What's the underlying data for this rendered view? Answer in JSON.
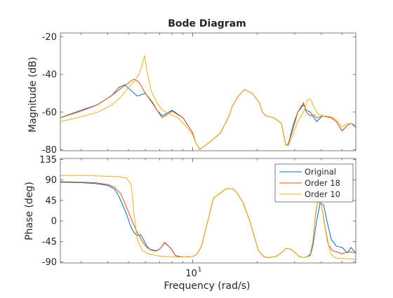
{
  "chart_data": {
    "type": "line",
    "title": "Bode Diagram",
    "xlabel": "Frequency  (rad/s)",
    "xscale": "log",
    "xlim": [
      2.4,
      58
    ],
    "x_tick_labels": [
      {
        "value": 10,
        "base": "10",
        "exponent": "1"
      }
    ],
    "grid": false,
    "legend": {
      "placement": "top-right",
      "panel": "phase",
      "entries": [
        "Original",
        "Order 18",
        "Order 10"
      ]
    },
    "panels": [
      {
        "name": "magnitude",
        "ylabel": "Magnitude (dB)",
        "ylim": [
          -80.5,
          -18
        ],
        "yticks": [
          -80,
          -60,
          -40,
          -20
        ],
        "series": [
          {
            "name": "Original",
            "color": "#0072BD",
            "x": [
              2.4,
              3.0,
              3.6,
              4.2,
              4.5,
              4.8,
              5.2,
              5.5,
              6.0,
              6.5,
              6.8,
              7.2,
              8.0,
              9.0,
              10.0,
              10.3,
              10.8,
              12.0,
              13.5,
              14.8,
              15.3,
              15.7,
              16.2,
              17.5,
              19.0,
              20.5,
              21.2,
              22.0,
              24.0,
              26.0,
              27.3,
              28.0,
              29.5,
              31.0,
              32.0,
              33.0,
              34.0,
              35.5,
              37.0,
              38.0,
              40.5,
              44.5,
              47.0,
              50.0,
              53.0,
              55.0,
              58.0
            ],
            "y": [
              -63,
              -59,
              -56,
              -51,
              -47,
              -45.5,
              -49,
              -51.5,
              -50,
              -55,
              -59,
              -62,
              -59,
              -63,
              -71,
              -76,
              -79.8,
              -76,
              -71,
              -62,
              -57,
              -55,
              -52,
              -48,
              -50,
              -55,
              -60,
              -62,
              -63,
              -66,
              -77.5,
              -77,
              -67,
              -60,
              -58,
              -56,
              -59,
              -60,
              -63,
              -65,
              -62,
              -63,
              -65,
              -70,
              -67,
              -66,
              -68
            ]
          },
          {
            "name": "Order 18",
            "color": "#D95319",
            "x": [
              2.4,
              3.0,
              3.6,
              4.2,
              4.6,
              5.0,
              5.3,
              5.6,
              6.0,
              6.5,
              6.8,
              7.2,
              8.0,
              9.0,
              10.0,
              10.3,
              10.8,
              12.0,
              13.5,
              14.8,
              15.3,
              15.7,
              16.2,
              17.5,
              19.0,
              20.5,
              21.2,
              22.0,
              24.0,
              26.0,
              27.3,
              28.0,
              29.5,
              31.0,
              32.0,
              33.0,
              34.0,
              35.5,
              37.0,
              38.0,
              40.5,
              44.5,
              47.0,
              50.0,
              53.0,
              55.0,
              58.0
            ],
            "y": [
              -63,
              -59.5,
              -56,
              -51,
              -47.5,
              -44.5,
              -42.5,
              -44,
              -50,
              -55.5,
              -59,
              -63,
              -59.5,
              -63,
              -71,
              -76,
              -79.8,
              -76,
              -71,
              -62,
              -57,
              -55,
              -52,
              -48,
              -50,
              -55,
              -60,
              -62,
              -63,
              -66,
              -77.5,
              -77,
              -69,
              -60,
              -57.5,
              -55,
              -60,
              -62,
              -61.5,
              -63,
              -62,
              -63,
              -65,
              -70,
              -67,
              -66,
              -67
            ]
          },
          {
            "name": "Order 10",
            "color": "#EDB120",
            "x": [
              2.4,
              3.0,
              3.6,
              4.2,
              4.6,
              5.0,
              5.3,
              5.6,
              5.8,
              5.95,
              6.1,
              6.4,
              6.8,
              7.2,
              7.8,
              8.5,
              9.2,
              10.0,
              10.3,
              10.8,
              12.0,
              13.5,
              14.8,
              15.3,
              15.7,
              16.2,
              17.5,
              19.0,
              20.5,
              21.2,
              22.0,
              24.0,
              26.0,
              27.3,
              28.0,
              29.5,
              31.0,
              33.0,
              34.5,
              35.5,
              36.5,
              38.5,
              41.0,
              44.5,
              47.0,
              50.0,
              53.0,
              55.0,
              58.0
            ],
            "y": [
              -65,
              -62.5,
              -60,
              -56,
              -52,
              -47,
              -44,
              -40,
              -35,
              -30,
              -38,
              -49,
              -55,
              -59,
              -61,
              -63,
              -67,
              -72,
              -76,
              -79.8,
              -76,
              -71,
              -62,
              -57,
              -55,
              -52,
              -48,
              -50,
              -55,
              -60,
              -62,
              -63,
              -66,
              -77.5,
              -78,
              -72,
              -65,
              -60,
              -53.5,
              -53,
              -56,
              -61,
              -62,
              -62.5,
              -64,
              -68,
              -66,
              -66,
              -67
            ]
          }
        ]
      },
      {
        "name": "phase",
        "ylabel": "Phase (deg)",
        "ylim": [
          -92,
          137
        ],
        "yticks": [
          -90,
          -45,
          0,
          45,
          90,
          135
        ],
        "series": [
          {
            "name": "Original",
            "color": "#0072BD",
            "x": [
              2.4,
              3.0,
              3.5,
              4.0,
              4.3,
              4.5,
              4.7,
              4.9,
              5.1,
              5.3,
              5.5,
              5.7,
              5.9,
              6.1,
              6.3,
              6.7,
              7.0,
              7.4,
              7.9,
              8.3,
              8.7,
              9.2,
              10.0,
              10.5,
              11.0,
              12.5,
              14.3,
              15.0,
              15.5,
              16.2,
              17.2,
              18.5,
              20.3,
              21.5,
              22.2,
              23.0,
              24.5,
              26.0,
              27.3,
              28.8,
              30.3,
              31.5,
              33.0,
              34.2,
              35.5,
              36.5,
              38.0,
              39.5,
              41.0,
              42.5,
              44.5,
              47.0,
              50.0,
              53.0,
              55.0,
              58.0
            ],
            "y": [
              85,
              84,
              82,
              78,
              70,
              55,
              35,
              15,
              -10,
              -25,
              -32,
              -30,
              -42,
              -55,
              -62,
              -65,
              -62,
              -48,
              -60,
              -76,
              -78,
              -79,
              -78,
              -72,
              -55,
              50,
              70,
              71,
              70,
              60,
              40,
              0,
              -65,
              -78,
              -80,
              -80,
              -78,
              -70,
              -60,
              -62,
              -70,
              -78,
              -80,
              -79,
              -75,
              -55,
              0,
              40,
              35,
              0,
              -40,
              -55,
              -58,
              -70,
              -58,
              -70
            ]
          },
          {
            "name": "Order 18",
            "color": "#D95319",
            "x": [
              2.4,
              3.0,
              3.5,
              4.0,
              4.3,
              4.6,
              4.9,
              5.2,
              5.5,
              5.8,
              6.1,
              6.4,
              6.7,
              7.0,
              7.4,
              7.9,
              8.3,
              8.7,
              9.2,
              10.0,
              10.5,
              11.0,
              12.5,
              14.3,
              15.0,
              15.5,
              16.2,
              17.2,
              18.5,
              20.3,
              21.5,
              22.2,
              23.0,
              24.5,
              26.0,
              27.3,
              28.8,
              30.3,
              31.5,
              33.0,
              34.2,
              35.5,
              36.5,
              37.5,
              38.5,
              40.0,
              41.5,
              43.0,
              45.0,
              47.5,
              50.0,
              53.0,
              55.0,
              58.0
            ],
            "y": [
              86,
              85,
              84,
              80,
              74,
              60,
              30,
              0,
              -25,
              -45,
              -58,
              -64,
              -66,
              -62,
              -47,
              -60,
              -76,
              -78,
              -79,
              -78,
              -72,
              -55,
              50,
              70,
              71,
              70,
              60,
              40,
              0,
              -65,
              -78,
              -80,
              -80,
              -78,
              -70,
              -60,
              -62,
              -70,
              -78,
              -80,
              -79,
              -72,
              -45,
              10,
              45,
              35,
              -10,
              -50,
              -65,
              -68,
              -72,
              -68,
              -68,
              -70
            ]
          },
          {
            "name": "Order 10",
            "color": "#EDB120",
            "x": [
              2.4,
              3.0,
              3.5,
              4.0,
              4.5,
              4.9,
              5.15,
              5.3,
              5.5,
              5.8,
              6.2,
              6.6,
              7.0,
              7.6,
              8.2,
              8.7,
              9.2,
              10.0,
              10.5,
              11.0,
              12.5,
              14.3,
              15.0,
              15.5,
              16.2,
              17.2,
              18.5,
              20.3,
              21.5,
              22.2,
              23.0,
              24.5,
              26.0,
              27.3,
              28.8,
              30.3,
              31.5,
              33.0,
              34.2,
              35.5,
              36.5,
              37.5,
              38.5,
              40.0,
              42.0,
              44.0,
              46.0,
              48.0,
              50.0,
              53.0,
              55.0,
              58.0
            ],
            "y": [
              100,
              100,
              99,
              98,
              97,
              94,
              80,
              20,
              -40,
              -65,
              -72,
              -75,
              -77,
              -78,
              -79,
              -79,
              -79,
              -78,
              -72,
              -55,
              50,
              70,
              71,
              70,
              60,
              40,
              0,
              -65,
              -78,
              -80,
              -80,
              -78,
              -70,
              -60,
              -62,
              -70,
              -78,
              -80,
              -79,
              -72,
              -45,
              15,
              45,
              35,
              -20,
              -70,
              -80,
              -82,
              -82,
              -83,
              -83,
              -84
            ]
          }
        ]
      }
    ]
  }
}
